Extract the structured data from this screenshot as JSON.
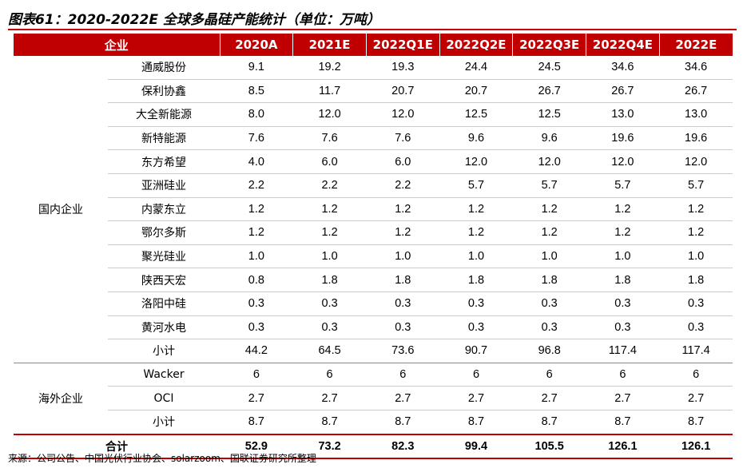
{
  "title": "图表61：2020-2022E 全球多晶硅产能统计（单位：万吨）",
  "colors": {
    "accent": "#c00000"
  },
  "header": [
    "企业",
    "2020A",
    "2021E",
    "2022Q1E",
    "2022Q2E",
    "2022Q3E",
    "2022Q4E",
    "2022E"
  ],
  "domestic": {
    "label": "国内企业",
    "rows": [
      {
        "name": "通威股份",
        "values": [
          "9.1",
          "19.2",
          "19.3",
          "24.4",
          "24.5",
          "34.6",
          "34.6"
        ]
      },
      {
        "name": "保利协鑫",
        "values": [
          "8.5",
          "11.7",
          "20.7",
          "20.7",
          "26.7",
          "26.7",
          "26.7"
        ]
      },
      {
        "name": "大全新能源",
        "values": [
          "8.0",
          "12.0",
          "12.0",
          "12.5",
          "12.5",
          "13.0",
          "13.0"
        ]
      },
      {
        "name": "新特能源",
        "values": [
          "7.6",
          "7.6",
          "7.6",
          "9.6",
          "9.6",
          "19.6",
          "19.6"
        ]
      },
      {
        "name": "东方希望",
        "values": [
          "4.0",
          "6.0",
          "6.0",
          "12.0",
          "12.0",
          "12.0",
          "12.0"
        ]
      },
      {
        "name": "亚洲硅业",
        "values": [
          "2.2",
          "2.2",
          "2.2",
          "5.7",
          "5.7",
          "5.7",
          "5.7"
        ]
      },
      {
        "name": "内蒙东立",
        "values": [
          "1.2",
          "1.2",
          "1.2",
          "1.2",
          "1.2",
          "1.2",
          "1.2"
        ]
      },
      {
        "name": "鄂尔多斯",
        "values": [
          "1.2",
          "1.2",
          "1.2",
          "1.2",
          "1.2",
          "1.2",
          "1.2"
        ]
      },
      {
        "name": "聚光硅业",
        "values": [
          "1.0",
          "1.0",
          "1.0",
          "1.0",
          "1.0",
          "1.0",
          "1.0"
        ]
      },
      {
        "name": "陕西天宏",
        "values": [
          "0.8",
          "1.8",
          "1.8",
          "1.8",
          "1.8",
          "1.8",
          "1.8"
        ]
      },
      {
        "name": "洛阳中硅",
        "values": [
          "0.3",
          "0.3",
          "0.3",
          "0.3",
          "0.3",
          "0.3",
          "0.3"
        ]
      },
      {
        "name": "黄河水电",
        "values": [
          "0.3",
          "0.3",
          "0.3",
          "0.3",
          "0.3",
          "0.3",
          "0.3"
        ]
      },
      {
        "name": "小计",
        "values": [
          "44.2",
          "64.5",
          "73.6",
          "90.7",
          "96.8",
          "117.4",
          "117.4"
        ]
      }
    ]
  },
  "overseas": {
    "label": "海外企业",
    "rows": [
      {
        "name": "Wacker",
        "values": [
          "6",
          "6",
          "6",
          "6",
          "6",
          "6",
          "6"
        ]
      },
      {
        "name": "OCI",
        "values": [
          "2.7",
          "2.7",
          "2.7",
          "2.7",
          "2.7",
          "2.7",
          "2.7"
        ]
      },
      {
        "name": "小计",
        "values": [
          "8.7",
          "8.7",
          "8.7",
          "8.7",
          "8.7",
          "8.7",
          "8.7"
        ]
      }
    ]
  },
  "total": {
    "label": "合计",
    "values": [
      "52.9",
      "73.2",
      "82.3",
      "99.4",
      "105.5",
      "126.1",
      "126.1"
    ]
  },
  "source": "来源：公司公告、中国光伏行业协会、solarzoom、国联证券研究所整理"
}
